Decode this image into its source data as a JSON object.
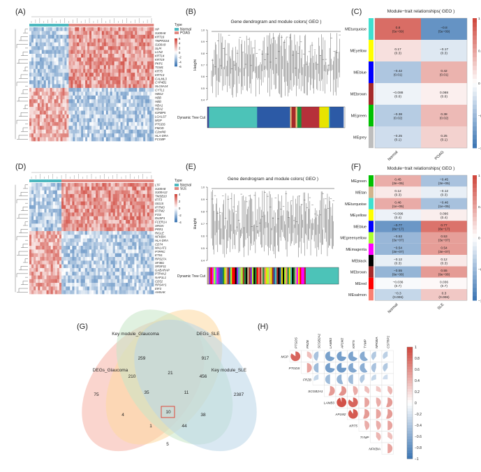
{
  "panels": {
    "A": "(A)",
    "B": "(B)",
    "C": "(C)",
    "D": "(D)",
    "E": "(E)",
    "F": "(F)",
    "G": "(G)",
    "H": "(H)"
  },
  "heatmapA": {
    "legend_title": "Type",
    "legend": [
      "Normal",
      "POAG"
    ],
    "colors": {
      "normal": "#4db8bf",
      "disease": "#e08982",
      "high": "#d73027",
      "mid": "#ffffff",
      "low": "#4575b4"
    },
    "scale_ticks": [
      "6",
      "4",
      "2",
      "0",
      "-2",
      "-4",
      "-6"
    ],
    "genes": [
      "HP",
      "S100A8",
      "KRT16",
      "TMPRSS4",
      "S100A9",
      "SLPI",
      "LCN2",
      "KRT14",
      "KRT19",
      "PKP1",
      "TGM1",
      "KRT5",
      "KRT13",
      "CALML3",
      "CYP4B1",
      "SLC6A14",
      "CYTL1",
      "HBG2",
      "HBB",
      "HBD",
      "HBA1",
      "HBA2",
      "IGFBP5",
      "LGALS7",
      "MGP",
      "PTGDS",
      "FMOD",
      "C2orf40",
      "HLA-DRA",
      "FCGBP"
    ]
  },
  "heatmapD": {
    "legend_title": "Type",
    "legend": [
      "Normal",
      "SLE"
    ],
    "scale_ticks": [
      "4",
      "2",
      "0",
      "-2",
      "-4"
    ],
    "genes": [
      "LTF",
      "S100A8",
      "S100A12",
      "TMSB10",
      "IFIT3",
      "ISG15",
      "IFITM3",
      "IFITM2",
      "FOS",
      "DUSP1",
      "FCER1A",
      "SRGN",
      "PRR1",
      "RIGLE",
      "NFKBIA",
      "HLA-DRA",
      "CD74",
      "MALAT1",
      "PTPRC",
      "ETS1",
      "RPS27A",
      "SF3B1",
      "SRSF11",
      "GABARAP",
      "PTP4A2",
      "NAP1L1",
      "CD52",
      "RPS4Y1",
      "EIF3",
      "AHNAK"
    ]
  },
  "dendroB": {
    "title": "Gene dendrogram and module colors( GEO )",
    "ylabel": "Height",
    "yticks": [
      "1.0",
      "0.9",
      "0.8",
      "0.7",
      "0.6",
      "0.5",
      "0.4"
    ],
    "band_label": "Dynamic Tree Cut"
  },
  "dendroE": {
    "title": "Gene dendrogram and module colors( GEO )",
    "ylabel": "Height",
    "yticks": [
      "1.0",
      "0.9",
      "0.8",
      "0.7",
      "0.6",
      "0.5",
      "0.4"
    ],
    "band_label": "Dynamic Tree Cut"
  },
  "moduleC": {
    "title": "Module−trait relationships( GEO )",
    "columns": [
      "Normal",
      "POAG"
    ],
    "rows": [
      {
        "name": "MEturquoise",
        "color": "#40e0d0",
        "vals": [
          0.8,
          -0.8
        ],
        "labels": [
          "0.8\n(5e−09)",
          "−0.8\n(5e−09)"
        ]
      },
      {
        "name": "MEyellow",
        "color": "#ffff00",
        "vals": [
          0.17,
          -0.17
        ],
        "labels": [
          "0.17\n(0.3)",
          "−0.17\n(0.3)"
        ]
      },
      {
        "name": "MEblue",
        "color": "#0000ff",
        "vals": [
          -0.42,
          0.42
        ],
        "labels": [
          "−0.42\n(0.01)",
          "0.42\n(0.01)"
        ]
      },
      {
        "name": "MEbrown",
        "color": "#a52a2a",
        "vals": [
          -0.088,
          0.088
        ],
        "labels": [
          "−0.088\n(0.6)",
          "0.088\n(0.6)"
        ]
      },
      {
        "name": "MEgreen",
        "color": "#00c000",
        "vals": [
          -0.38,
          0.38
        ],
        "labels": [
          "−0.38\n(0.02)",
          "0.38\n(0.02)"
        ]
      },
      {
        "name": "MEgrey",
        "color": "#bebebe",
        "vals": [
          -0.25,
          0.25
        ],
        "labels": [
          "−0.25\n(0.1)",
          "0.25\n(0.1)"
        ]
      }
    ],
    "scale_ticks": [
      "1",
      "0.5",
      "0",
      "−0.5",
      "−1"
    ]
  },
  "moduleF": {
    "title": "Module−trait relationships( GEO )",
    "columns": [
      "Normal",
      "SLE"
    ],
    "rows": [
      {
        "name": "MEgreen",
        "color": "#00c000",
        "vals": [
          0.45,
          -0.45
        ],
        "labels": [
          "0.45\n(3e−05)",
          "−0.45\n(3e−05)"
        ]
      },
      {
        "name": "MEtan",
        "color": "#d2b48c",
        "vals": [
          0.12,
          -0.12
        ],
        "labels": [
          "0.12\n(0.3)",
          "−0.12\n(0.3)"
        ]
      },
      {
        "name": "MEturquoise",
        "color": "#40e0d0",
        "vals": [
          0.46,
          -0.46
        ],
        "labels": [
          "0.46\n(1e−05)",
          "−0.46\n(1e−05)"
        ]
      },
      {
        "name": "MEyellow",
        "color": "#ffff00",
        "vals": [
          -0.096,
          0.096
        ],
        "labels": [
          "−0.096\n(0.4)",
          "0.096\n(0.4)"
        ]
      },
      {
        "name": "MEblue",
        "color": "#0000ff",
        "vals": [
          -0.77,
          0.77
        ],
        "labels": [
          "−0.77\n(8e−17)",
          "0.77\n(8e−17)"
        ]
      },
      {
        "name": "MEgreenyellow",
        "color": "#adff2f",
        "vals": [
          -0.53,
          0.53
        ],
        "labels": [
          "−0.53\n(3e−07)",
          "0.53\n(3e−07)"
        ]
      },
      {
        "name": "MEmagenta",
        "color": "#ff00ff",
        "vals": [
          -0.54,
          0.54
        ],
        "labels": [
          "−0.54\n(3e−07)",
          "0.54\n(3e−07)"
        ]
      },
      {
        "name": "MEblack",
        "color": "#000000",
        "vals": [
          -0.12,
          0.12
        ],
        "labels": [
          "−0.12\n(0.3)",
          "0.12\n(0.3)"
        ]
      },
      {
        "name": "MEbrown",
        "color": "#a52a2a",
        "vals": [
          -0.55,
          0.55
        ],
        "labels": [
          "−0.55\n(9e−08)",
          "0.55\n(9e−08)"
        ]
      },
      {
        "name": "MEred",
        "color": "#ff0000",
        "vals": [
          -0.036,
          0.036
        ],
        "labels": [
          "−0.036\n(0.7)",
          "0.036\n(0.7)"
        ]
      },
      {
        "name": "MEsalmon",
        "color": "#fa8072",
        "vals": [
          -0.3,
          0.3
        ],
        "labels": [
          "−0.3\n(0.006)",
          "0.3\n(0.006)"
        ]
      }
    ],
    "scale_ticks": [
      "1",
      "0.5",
      "0",
      "−0.5",
      "−1"
    ]
  },
  "venn": {
    "sets": [
      "Key module_Glaucoma",
      "DEGs_SLE",
      "DEGs_Glaucoma",
      "Key module_SLE"
    ],
    "set_colors": [
      "#fdd9a0",
      "#c7e6c7",
      "#f6b2a6",
      "#b9d6e8"
    ],
    "counts": [
      "259",
      "917",
      "210",
      "21",
      "456",
      "75",
      "35",
      "11",
      "2387",
      "10",
      "4",
      "38",
      "1",
      "44",
      "5"
    ],
    "highlight": "10"
  },
  "corr": {
    "genes": [
      "MGP",
      "PTGDS",
      "FRZB",
      "SCGB2A1",
      "LAMB3",
      "AP1M2",
      "KRT5",
      "TYMP",
      "NFKBIA",
      "CSTRP1"
    ],
    "row_labels": [
      "MGP",
      "PTGDS",
      "FRZB",
      "SCGB2A1",
      "LAMB3",
      "AP1M2",
      "KRT5",
      "TYMP",
      "NFKBIA"
    ],
    "col_labels": [
      "PTGDS",
      "FRZB",
      "SCGB2A1",
      "LAMB3",
      "AP1M2",
      "KRT5",
      "TYMP",
      "NFKBIA",
      "CSTRP1"
    ],
    "matrix": [
      [
        0.85,
        0.35,
        -0.45,
        -0.7,
        -0.72,
        -0.68,
        -0.62,
        -0.4,
        -0.35
      ],
      [
        0.5,
        -0.5,
        -0.72,
        -0.75,
        -0.65,
        -0.6,
        -0.45,
        -0.4
      ],
      [
        -0.3,
        -0.5,
        -0.55,
        -0.5,
        -0.4,
        -0.3,
        -0.25
      ],
      [
        0.55,
        0.6,
        0.45,
        0.35,
        0.3,
        0.4
      ],
      [
        0.95,
        0.85,
        0.5,
        0.45,
        0.55
      ],
      [
        0.9,
        0.55,
        0.5,
        0.55
      ],
      [
        0.45,
        0.45,
        0.5
      ],
      [
        0.4,
        0.35
      ],
      [
        0.5
      ]
    ],
    "scale_ticks": [
      "1",
      "0.8",
      "0.6",
      "0.4",
      "0.2",
      "0",
      "−0.2",
      "−0.4",
      "−0.6",
      "−0.8",
      "−1"
    ]
  }
}
